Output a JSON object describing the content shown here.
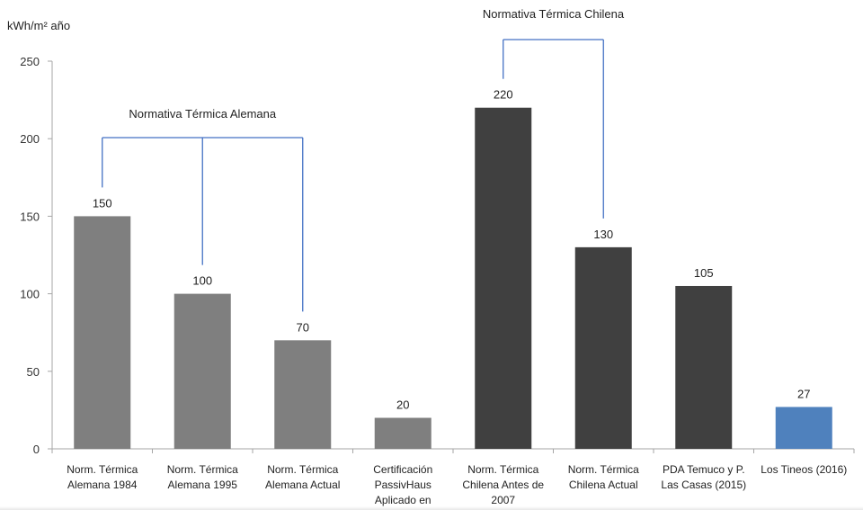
{
  "chart_data": {
    "type": "bar",
    "ylabel": "kWh/m² año",
    "ylim": [
      0,
      250
    ],
    "yticks": [
      0,
      50,
      100,
      150,
      200,
      250
    ],
    "grid": false,
    "categories": [
      [
        "Norm. Térmica",
        "Alemana 1984"
      ],
      [
        "Norm. Térmica",
        "Alemana 1995"
      ],
      [
        "Norm. Térmica",
        "Alemana Actual"
      ],
      [
        "Certificación",
        "PassivHaus",
        "Aplicado en"
      ],
      [
        "Norm. Térmica",
        "Chilena Antes de",
        "2007"
      ],
      [
        "Norm. Térmica",
        "Chilena Actual"
      ],
      [
        "PDA Temuco y P.",
        "Las Casas (2015)"
      ],
      [
        "Los Tineos (2016)"
      ]
    ],
    "values": [
      150,
      100,
      70,
      20,
      220,
      130,
      105,
      27
    ],
    "bar_colors": [
      "#7f7f7f",
      "#7f7f7f",
      "#7f7f7f",
      "#7f7f7f",
      "#404040",
      "#404040",
      "#404040",
      "#4f81bd"
    ],
    "annotations": [
      {
        "label": "Normativa Térmica Alemana",
        "bars": [
          0,
          1,
          2
        ],
        "color": "#4472c4"
      },
      {
        "label": "Normativa Térmica Chilena",
        "bars": [
          4,
          5
        ],
        "color": "#4472c4"
      }
    ],
    "axis_color": "#a6a6a6"
  }
}
